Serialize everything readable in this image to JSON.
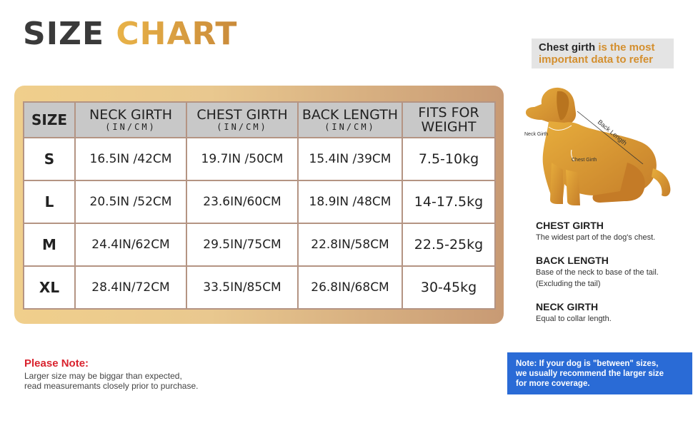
{
  "title": {
    "part1": "SIZE",
    "part2": "CHART"
  },
  "table": {
    "headers": [
      {
        "label": "SIZE",
        "unit": ""
      },
      {
        "label": "NECK GIRTH",
        "unit": "(IN/CM)"
      },
      {
        "label": "CHEST GIRTH",
        "unit": "(IN/CM)"
      },
      {
        "label": "BACK LENGTH",
        "unit": "(IN/CM)"
      },
      {
        "label": "FITS FOR",
        "unit": "WEIGHT"
      }
    ],
    "rows": [
      {
        "size": "S",
        "neck": "16.5IN /42CM",
        "chest": "19.7IN /50CM",
        "back": "15.4IN /39CM",
        "weight": "7.5-10kg"
      },
      {
        "size": "L",
        "neck": "20.5IN /52CM",
        "chest": "23.6IN/60CM",
        "back": "18.9IN /48CM",
        "weight": "14-17.5kg"
      },
      {
        "size": "M",
        "neck": "24.4IN/62CM",
        "chest": "29.5IN/75CM",
        "back": "22.8IN/58CM",
        "weight": "22.5-25kg"
      },
      {
        "size": "XL",
        "neck": "28.4IN/72CM",
        "chest": "33.5IN/85CM",
        "back": "26.8IN/68CM",
        "weight": "30-45kg"
      }
    ]
  },
  "callout": {
    "strong": "Chest girth",
    "rest": " is the most important data to refer"
  },
  "diagram": {
    "neck_label": "Neck Girth",
    "chest_label": "Chest Girth",
    "back_label": "Back Length",
    "dog_color": "#d8962f"
  },
  "definitions": [
    {
      "title": "CHEST GIRTH",
      "desc": "The widest part of the dog's chest.",
      "desc2": ""
    },
    {
      "title": "BACK LENGTH",
      "desc": "Base of the neck to base of the tail.",
      "desc2": "(Excluding the tail)"
    },
    {
      "title": "NECK GIRTH",
      "desc": "Equal to collar length.",
      "desc2": ""
    }
  ],
  "please_note": {
    "title": "Please Note:",
    "line1": "Larger size may be biggar than expected,",
    "line2": "read measuremants closely prior to purchase."
  },
  "blue_note": {
    "line1": "Note: If your dog is \"between\" sizes,",
    "line2": "we usually recommend the larger size",
    "line3": "for more coverage."
  },
  "colors": {
    "accent_gold": "#d9a23e",
    "note_red": "#d9232e",
    "note_blue": "#2a6bd6"
  }
}
